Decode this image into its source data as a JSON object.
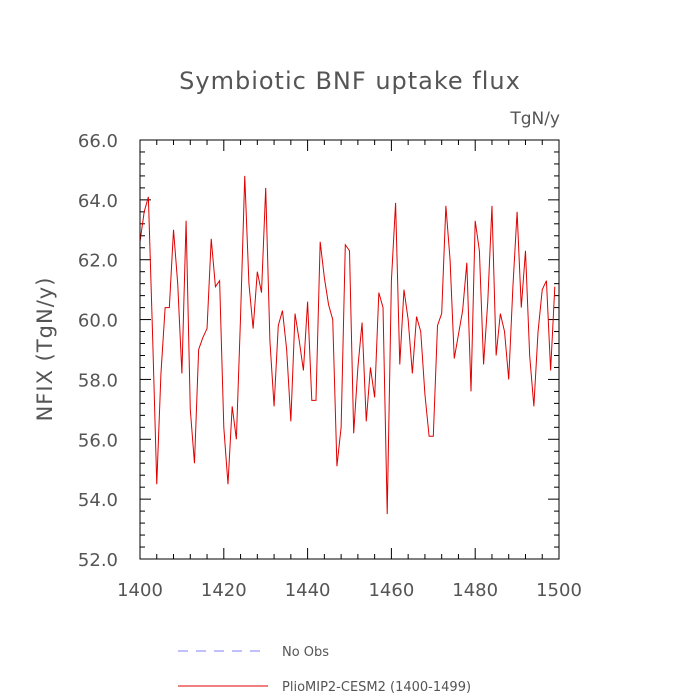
{
  "chart_data": {
    "type": "line",
    "title": "Symbiotic BNF uptake flux",
    "units": "TgN/y",
    "xlabel": "",
    "ylabel": "NFIX  (TgN/y)",
    "xlim": [
      1400,
      1500
    ],
    "ylim": [
      52.0,
      66.0
    ],
    "xticks": [
      1400,
      1420,
      1440,
      1460,
      1480,
      1500
    ],
    "yticks": [
      52.0,
      54.0,
      56.0,
      58.0,
      60.0,
      62.0,
      64.0,
      66.0
    ],
    "x_tick_labels": [
      "1400",
      "1420",
      "1440",
      "1460",
      "1480",
      "1500"
    ],
    "y_tick_labels": [
      "52.0",
      "54.0",
      "56.0",
      "58.0",
      "60.0",
      "62.0",
      "64.0",
      "66.0"
    ],
    "grid": false,
    "legend_position": "bottom",
    "series": [
      {
        "name": "No Obs",
        "color": "#8080ff",
        "dashed": true,
        "x": [],
        "values": []
      },
      {
        "name": "PlioMIP2-CESM2 (1400-1499)",
        "color": "#e00000",
        "dashed": false,
        "x": [
          1400,
          1401,
          1402,
          1403,
          1404,
          1405,
          1406,
          1407,
          1408,
          1409,
          1410,
          1411,
          1412,
          1413,
          1414,
          1415,
          1416,
          1417,
          1418,
          1419,
          1420,
          1421,
          1422,
          1423,
          1424,
          1425,
          1426,
          1427,
          1428,
          1429,
          1430,
          1431,
          1432,
          1433,
          1434,
          1435,
          1436,
          1437,
          1438,
          1439,
          1440,
          1441,
          1442,
          1443,
          1444,
          1445,
          1446,
          1447,
          1448,
          1449,
          1450,
          1451,
          1452,
          1453,
          1454,
          1455,
          1456,
          1457,
          1458,
          1459,
          1460,
          1461,
          1462,
          1463,
          1464,
          1465,
          1466,
          1467,
          1468,
          1469,
          1470,
          1471,
          1472,
          1473,
          1474,
          1475,
          1476,
          1477,
          1478,
          1479,
          1480,
          1481,
          1482,
          1483,
          1484,
          1485,
          1486,
          1487,
          1488,
          1489,
          1490,
          1491,
          1492,
          1493,
          1494,
          1495,
          1496,
          1497,
          1498,
          1499
        ],
        "values": [
          62.6,
          63.6,
          64.1,
          59.5,
          54.5,
          58.2,
          60.4,
          60.4,
          63.0,
          61.2,
          58.2,
          63.3,
          57.0,
          55.2,
          59.0,
          59.4,
          59.7,
          62.7,
          61.1,
          61.3,
          56.4,
          54.5,
          57.1,
          56.0,
          60.1,
          64.8,
          61.2,
          59.7,
          61.6,
          60.9,
          64.4,
          59.3,
          57.1,
          59.8,
          60.3,
          59.0,
          56.6,
          60.2,
          59.3,
          58.3,
          60.6,
          57.3,
          57.3,
          62.6,
          61.4,
          60.5,
          60.0,
          55.1,
          56.4,
          62.5,
          62.3,
          56.2,
          58.4,
          59.9,
          56.6,
          58.4,
          57.4,
          60.9,
          60.4,
          53.5,
          61.3,
          63.9,
          58.5,
          61.0,
          60.0,
          58.2,
          60.1,
          59.6,
          57.5,
          56.1,
          56.1,
          59.8,
          60.2,
          63.8,
          62.0,
          58.7,
          59.5,
          60.3,
          61.9,
          57.6,
          63.3,
          62.3,
          58.5,
          60.6,
          63.8,
          58.8,
          60.2,
          59.6,
          58.0,
          61.1,
          63.6,
          60.4,
          62.3,
          58.8,
          57.1,
          59.6,
          61.0,
          61.3,
          58.3,
          61.1
        ]
      }
    ]
  }
}
